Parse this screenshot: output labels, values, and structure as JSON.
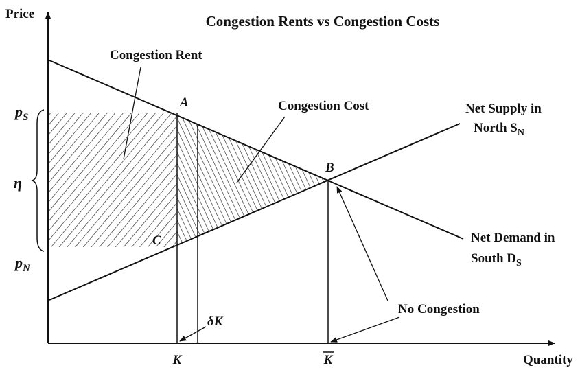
{
  "title": "Congestion Rents vs Congestion Costs",
  "axes": {
    "y_label": "Price",
    "x_label": "Quantity"
  },
  "price_labels": {
    "upper": {
      "text": "p",
      "sub": "S"
    },
    "lower": {
      "text": "p",
      "sub": "N"
    },
    "gap": "η"
  },
  "regions": {
    "rent": "Congestion Rent",
    "cost": "Congestion Cost"
  },
  "points": {
    "a": "A",
    "b": "B",
    "c": "C"
  },
  "curves": {
    "supply": {
      "line1": "Net Supply in",
      "line2": {
        "text": "North S",
        "sub": "N"
      }
    },
    "demand": {
      "line1": "Net Demand in",
      "line2": {
        "text": "South D",
        "sub": "S"
      }
    }
  },
  "quantity_labels": {
    "k": "K",
    "k_bar": "K",
    "delta_k": "δK"
  },
  "annotations": {
    "no_congestion": "No Congestion"
  }
}
